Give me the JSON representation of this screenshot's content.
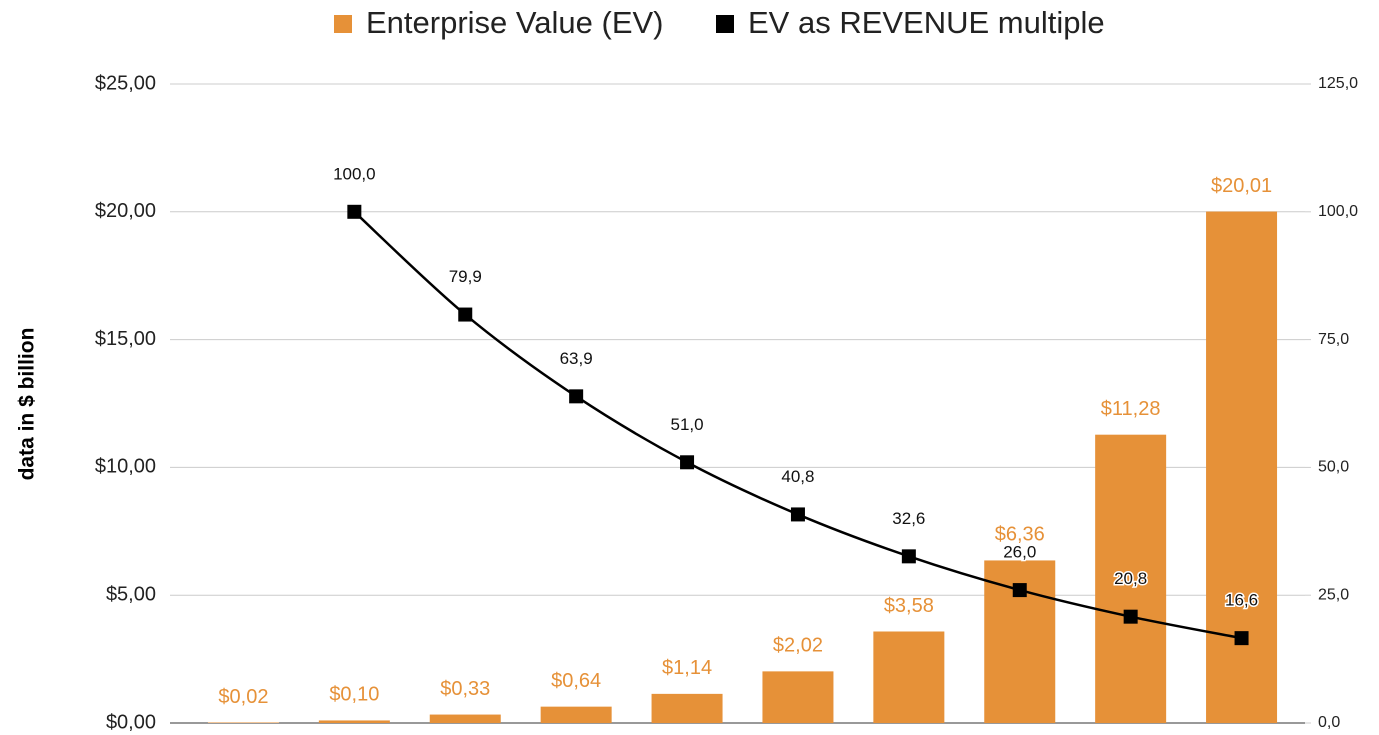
{
  "chart_data": {
    "type": "bar-line",
    "y_label": "data in $ billion",
    "categories": [
      null,
      null,
      null,
      null,
      null,
      null,
      null,
      null,
      null,
      null
    ],
    "series": [
      {
        "name": "Enterprise Value (EV)",
        "type": "bar",
        "color": "#e69138",
        "values": [
          0.02,
          0.1,
          0.33,
          0.64,
          1.14,
          2.02,
          3.58,
          6.36,
          11.28,
          20.01
        ],
        "value_labels": [
          "$0,02",
          "$0,10",
          "$0,33",
          "$0,64",
          "$1,14",
          "$2,02",
          "$3,58",
          "$6,36",
          "$11,28",
          "$20,01"
        ]
      },
      {
        "name": "EV as REVENUE multiple",
        "type": "line",
        "color": "#000000",
        "axis": "y2",
        "values": [
          null,
          100.0,
          79.9,
          63.9,
          51.0,
          40.8,
          32.6,
          26.0,
          20.8,
          16.6
        ],
        "value_labels": [
          null,
          "100,0",
          "79,9",
          "63,9",
          "51,0",
          "40,8",
          "32,6",
          "26,0",
          "20,8",
          "16,6"
        ]
      }
    ],
    "ylim": [
      0,
      25
    ],
    "yticks": [
      {
        "value": 0,
        "label": "$0,00"
      },
      {
        "value": 5,
        "label": "$5,00"
      },
      {
        "value": 10,
        "label": "$10,00"
      },
      {
        "value": 15,
        "label": "$15,00"
      },
      {
        "value": 20,
        "label": "$20,00"
      },
      {
        "value": 25,
        "label": "$25,00"
      }
    ],
    "y2lim": [
      0,
      125
    ],
    "y2ticks": [
      {
        "value": 0,
        "label": "0,0"
      },
      {
        "value": 25,
        "label": "25,0"
      },
      {
        "value": 50,
        "label": "50,0"
      },
      {
        "value": 75,
        "label": "75,0"
      },
      {
        "value": 100,
        "label": "100,0"
      },
      {
        "value": 125,
        "label": "125,0"
      }
    ],
    "grid": true,
    "legend": "top"
  }
}
